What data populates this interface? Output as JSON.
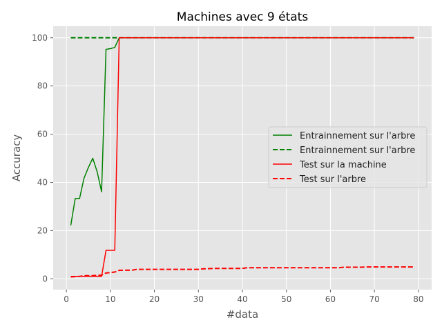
{
  "chart_data": {
    "type": "line",
    "title": "Machines avec 9 états",
    "xlabel": "#data",
    "ylabel": "Accuracy",
    "xlim": [
      -3,
      83
    ],
    "ylim": [
      -4.5,
      104.8
    ],
    "xticks": [
      0,
      10,
      20,
      30,
      40,
      50,
      60,
      70,
      80
    ],
    "yticks": [
      0,
      20,
      40,
      60,
      80,
      100
    ],
    "grid": true,
    "legend_position": "center-right",
    "series": [
      {
        "name": "Entrainnement sur l'arbre",
        "color": "#008000",
        "style": "solid",
        "points": [
          [
            1,
            22.2
          ],
          [
            2,
            33.3
          ],
          [
            3,
            33.3
          ],
          [
            4,
            41.7
          ],
          [
            5,
            46.2
          ],
          [
            6,
            50.0
          ],
          [
            7,
            44.4
          ],
          [
            8,
            36.1
          ],
          [
            9,
            95.2
          ],
          [
            10,
            95.5
          ],
          [
            11,
            96.0
          ],
          [
            12,
            100
          ],
          [
            13,
            100
          ],
          [
            20,
            100
          ],
          [
            30,
            100
          ],
          [
            40,
            100
          ],
          [
            50,
            100
          ],
          [
            60,
            100
          ],
          [
            70,
            100
          ],
          [
            79,
            100
          ]
        ]
      },
      {
        "name": "Entrainnement sur l'arbre",
        "color": "#008000",
        "style": "dashed",
        "points": [
          [
            1,
            100
          ],
          [
            79,
            100
          ]
        ]
      },
      {
        "name": "Test sur la machine",
        "color": "#ff0000",
        "style": "solid",
        "points": [
          [
            1,
            1.0
          ],
          [
            2,
            1.0
          ],
          [
            3,
            1.0
          ],
          [
            4,
            1.0
          ],
          [
            5,
            1.0
          ],
          [
            6,
            1.0
          ],
          [
            7,
            1.0
          ],
          [
            8,
            1.0
          ],
          [
            9,
            11.8
          ],
          [
            10,
            11.8
          ],
          [
            11,
            11.8
          ],
          [
            12,
            100
          ],
          [
            13,
            100
          ],
          [
            20,
            100
          ],
          [
            30,
            100
          ],
          [
            40,
            100
          ],
          [
            50,
            100
          ],
          [
            60,
            100
          ],
          [
            70,
            100
          ],
          [
            79,
            100
          ]
        ]
      },
      {
        "name": "Test sur l'arbre",
        "color": "#ff0000",
        "style": "dashed",
        "points": [
          [
            1,
            0.8
          ],
          [
            3,
            1.0
          ],
          [
            4,
            1.3
          ],
          [
            6,
            1.3
          ],
          [
            8,
            1.5
          ],
          [
            9,
            2.4
          ],
          [
            11,
            2.8
          ],
          [
            12,
            3.5
          ],
          [
            15,
            3.6
          ],
          [
            16,
            3.9
          ],
          [
            30,
            3.9
          ],
          [
            31,
            4.1
          ],
          [
            34,
            4.3
          ],
          [
            40,
            4.3
          ],
          [
            41,
            4.6
          ],
          [
            62,
            4.6
          ],
          [
            63,
            4.8
          ],
          [
            67,
            4.8
          ],
          [
            68,
            4.9
          ],
          [
            79,
            4.9
          ]
        ]
      }
    ]
  }
}
